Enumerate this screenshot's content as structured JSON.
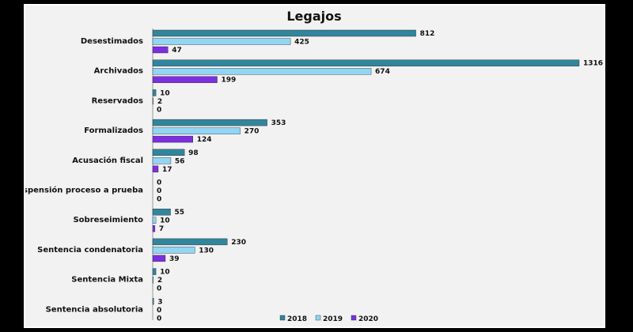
{
  "colors": {
    "series_2018": "#31859c",
    "series_2019": "#92d5f4",
    "series_2020": "#7b2fe0",
    "background": "#f2f2f2"
  },
  "chart_data": {
    "type": "bar",
    "orientation": "horizontal",
    "title": "Legajos",
    "categories": [
      "Desestimados",
      "Archivados",
      "Reservados",
      "Formalizados",
      "Acusación fiscal",
      "Suspensión proceso a prueba",
      "Sobreseimiento",
      "Sentencia condenatoria",
      "Sentencia Mixta",
      "Sentencia absolutoria"
    ],
    "series": [
      {
        "name": "2018",
        "values": [
          812,
          1316,
          10,
          353,
          98,
          0,
          55,
          230,
          10,
          3
        ]
      },
      {
        "name": "2019",
        "values": [
          425,
          674,
          2,
          270,
          56,
          0,
          10,
          130,
          2,
          0
        ]
      },
      {
        "name": "2020",
        "values": [
          47,
          199,
          0,
          124,
          17,
          0,
          7,
          39,
          0,
          0
        ]
      }
    ],
    "xlim": [
      0,
      1316
    ],
    "grid": false,
    "legend_position": "bottom"
  }
}
